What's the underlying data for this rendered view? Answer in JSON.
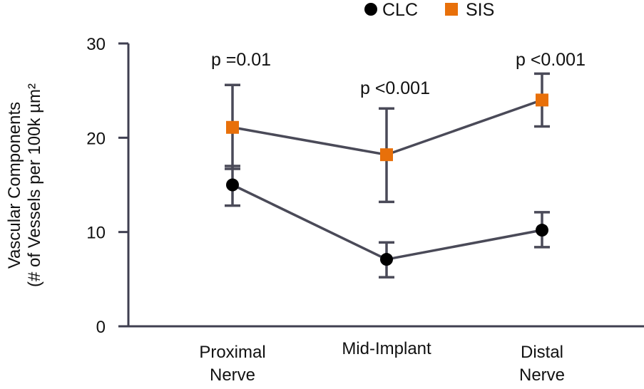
{
  "chart_data": {
    "type": "line",
    "ylabel_lines": [
      "Vascular Components",
      "(# of Vessels per 100k µm²"
    ],
    "categories": [
      {
        "lines": [
          "Proximal",
          "Nerve"
        ]
      },
      {
        "lines": [
          "Mid-Implant"
        ]
      },
      {
        "lines": [
          "Distal",
          "Nerve"
        ]
      }
    ],
    "ylim": [
      0,
      30
    ],
    "yticks": [
      0,
      10,
      20,
      30
    ],
    "series": [
      {
        "name": "CLC",
        "marker": "circle",
        "color": "#000000",
        "values": [
          15.0,
          7.1,
          10.2
        ],
        "err_low": [
          12.8,
          5.2,
          8.4
        ],
        "err_high": [
          17.0,
          8.9,
          12.1
        ]
      },
      {
        "name": "SIS",
        "marker": "square",
        "color": "#E8700A",
        "values": [
          21.1,
          18.2,
          24.0
        ],
        "err_low": [
          16.7,
          13.2,
          21.2
        ],
        "err_high": [
          25.6,
          23.1,
          26.8
        ]
      }
    ],
    "annotations": [
      "p =0.01",
      "p <0.001",
      "p <0.001"
    ],
    "line_color": "#4a4a58",
    "legend_position": "top-right"
  }
}
